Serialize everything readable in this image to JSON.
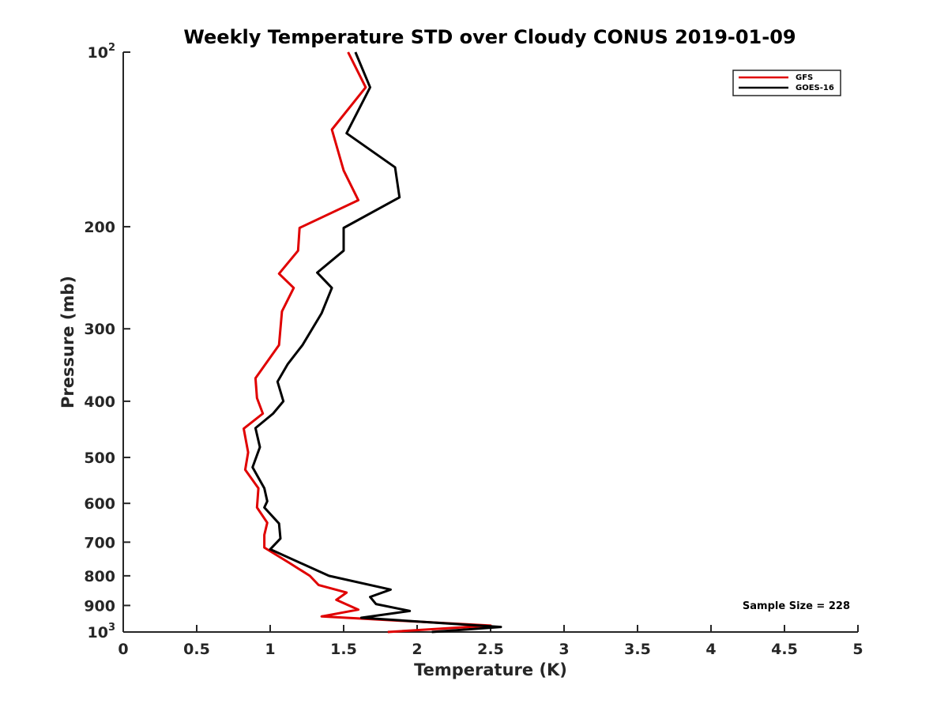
{
  "chart_data": {
    "type": "line",
    "title": "Weekly Temperature STD over Cloudy CONUS 2019-01-09",
    "xlabel": "Temperature (K)",
    "ylabel": "Pressure (mb)",
    "xlim": [
      0,
      5
    ],
    "ylim": [
      100,
      1000
    ],
    "y_scale": "log",
    "y_reversed": true,
    "grid": false,
    "legend_position": "top-right",
    "x_ticks": [
      {
        "value": 0,
        "label": "0"
      },
      {
        "value": 0.5,
        "label": "0.5"
      },
      {
        "value": 1,
        "label": "1"
      },
      {
        "value": 1.5,
        "label": "1.5"
      },
      {
        "value": 2,
        "label": "2"
      },
      {
        "value": 2.5,
        "label": "2.5"
      },
      {
        "value": 3,
        "label": "3"
      },
      {
        "value": 3.5,
        "label": "3.5"
      },
      {
        "value": 4,
        "label": "4"
      },
      {
        "value": 4.5,
        "label": "4.5"
      },
      {
        "value": 5,
        "label": "5"
      }
    ],
    "y_ticks": [
      {
        "value": 100,
        "base": "10",
        "exp": "2"
      },
      {
        "value": 200,
        "base": "200",
        "exp": ""
      },
      {
        "value": 300,
        "base": "300",
        "exp": ""
      },
      {
        "value": 400,
        "base": "400",
        "exp": ""
      },
      {
        "value": 500,
        "base": "500",
        "exp": ""
      },
      {
        "value": 600,
        "base": "600",
        "exp": ""
      },
      {
        "value": 700,
        "base": "700",
        "exp": ""
      },
      {
        "value": 800,
        "base": "800",
        "exp": ""
      },
      {
        "value": 900,
        "base": "900",
        "exp": ""
      },
      {
        "value": 1000,
        "base": "10",
        "exp": "3"
      }
    ],
    "series": [
      {
        "name": "GFS",
        "color": "#e00000",
        "points": [
          {
            "x": 1.53,
            "y": 100
          },
          {
            "x": 1.65,
            "y": 115
          },
          {
            "x": 1.42,
            "y": 136
          },
          {
            "x": 1.5,
            "y": 160
          },
          {
            "x": 1.6,
            "y": 180
          },
          {
            "x": 1.2,
            "y": 201
          },
          {
            "x": 1.19,
            "y": 220
          },
          {
            "x": 1.06,
            "y": 241
          },
          {
            "x": 1.16,
            "y": 255
          },
          {
            "x": 1.08,
            "y": 280
          },
          {
            "x": 1.06,
            "y": 320
          },
          {
            "x": 0.9,
            "y": 365
          },
          {
            "x": 0.91,
            "y": 395
          },
          {
            "x": 0.95,
            "y": 420
          },
          {
            "x": 0.82,
            "y": 446
          },
          {
            "x": 0.85,
            "y": 490
          },
          {
            "x": 0.83,
            "y": 525
          },
          {
            "x": 0.92,
            "y": 565
          },
          {
            "x": 0.91,
            "y": 610
          },
          {
            "x": 0.98,
            "y": 648
          },
          {
            "x": 0.96,
            "y": 680
          },
          {
            "x": 0.96,
            "y": 715
          },
          {
            "x": 1.13,
            "y": 760
          },
          {
            "x": 1.27,
            "y": 800
          },
          {
            "x": 1.33,
            "y": 830
          },
          {
            "x": 1.52,
            "y": 855
          },
          {
            "x": 1.45,
            "y": 880
          },
          {
            "x": 1.6,
            "y": 915
          },
          {
            "x": 1.35,
            "y": 940
          },
          {
            "x": 2.5,
            "y": 975
          },
          {
            "x": 1.8,
            "y": 1000
          }
        ]
      },
      {
        "name": "GOES-16",
        "color": "#000000",
        "points": [
          {
            "x": 1.58,
            "y": 100
          },
          {
            "x": 1.68,
            "y": 115
          },
          {
            "x": 1.52,
            "y": 138
          },
          {
            "x": 1.85,
            "y": 158
          },
          {
            "x": 1.88,
            "y": 178
          },
          {
            "x": 1.5,
            "y": 201
          },
          {
            "x": 1.5,
            "y": 220
          },
          {
            "x": 1.32,
            "y": 240
          },
          {
            "x": 1.42,
            "y": 255
          },
          {
            "x": 1.35,
            "y": 282
          },
          {
            "x": 1.22,
            "y": 320
          },
          {
            "x": 1.12,
            "y": 345
          },
          {
            "x": 1.05,
            "y": 370
          },
          {
            "x": 1.09,
            "y": 400
          },
          {
            "x": 1.02,
            "y": 420
          },
          {
            "x": 0.9,
            "y": 445
          },
          {
            "x": 0.93,
            "y": 480
          },
          {
            "x": 0.88,
            "y": 520
          },
          {
            "x": 0.96,
            "y": 565
          },
          {
            "x": 0.98,
            "y": 595
          },
          {
            "x": 0.96,
            "y": 610
          },
          {
            "x": 1.06,
            "y": 650
          },
          {
            "x": 1.07,
            "y": 690
          },
          {
            "x": 1.0,
            "y": 720
          },
          {
            "x": 1.4,
            "y": 800
          },
          {
            "x": 1.82,
            "y": 845
          },
          {
            "x": 1.68,
            "y": 870
          },
          {
            "x": 1.72,
            "y": 895
          },
          {
            "x": 1.95,
            "y": 920
          },
          {
            "x": 1.62,
            "y": 945
          },
          {
            "x": 2.57,
            "y": 980
          },
          {
            "x": 2.1,
            "y": 1000
          }
        ]
      }
    ],
    "annotation": "Sample Size = 228"
  }
}
